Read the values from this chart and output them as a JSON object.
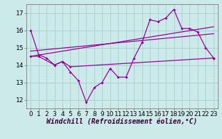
{
  "background_color": "#cceaea",
  "grid_color": "#aacccc",
  "line_color": "#990099",
  "xlim": [
    -0.5,
    23.5
  ],
  "ylim": [
    11.5,
    17.5
  ],
  "yticks": [
    12,
    13,
    14,
    15,
    16,
    17
  ],
  "xticks": [
    0,
    1,
    2,
    3,
    4,
    5,
    6,
    7,
    8,
    9,
    10,
    11,
    12,
    13,
    14,
    15,
    16,
    17,
    18,
    19,
    20,
    21,
    22,
    23
  ],
  "xlabel": "Windchill (Refroidissement éolien,°C)",
  "series1_x": [
    0,
    1,
    2,
    3,
    4,
    5,
    6,
    7,
    8,
    9,
    10,
    11,
    12,
    13,
    14,
    15,
    16,
    17,
    18,
    19,
    20,
    21,
    22,
    23
  ],
  "series1_y": [
    16.0,
    14.6,
    14.4,
    14.0,
    14.2,
    13.6,
    13.1,
    11.85,
    12.7,
    13.0,
    13.8,
    13.3,
    13.3,
    14.4,
    15.3,
    16.6,
    16.5,
    16.7,
    17.2,
    16.1,
    16.1,
    15.9,
    15.0,
    14.4
  ],
  "series2_x": [
    0,
    1,
    3,
    4,
    5,
    23
  ],
  "series2_y": [
    14.5,
    14.5,
    14.0,
    14.2,
    13.9,
    14.4
  ],
  "series3_x": [
    0,
    23
  ],
  "series3_y": [
    14.5,
    16.2
  ],
  "series4_x": [
    0,
    23
  ],
  "series4_y": [
    14.8,
    15.8
  ],
  "tick_fontsize": 6.5,
  "xlabel_fontsize": 7
}
